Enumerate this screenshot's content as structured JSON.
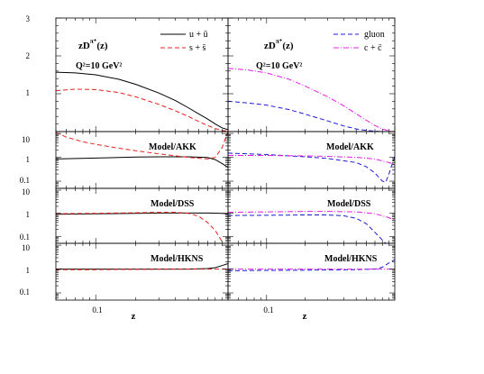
{
  "figure": {
    "left_panel": {
      "ylabel_math": "zD",
      "ylabel_sup": "π⁺",
      "ylabel_arg": "(z)",
      "scale_text": "Q²=10 GeV²",
      "legend": [
        "u + ū",
        "s + s̄"
      ]
    },
    "right_panel": {
      "ylabel_math": "zD",
      "ylabel_sup": "π⁺",
      "ylabel_arg": "(z)",
      "scale_text": "Q²=10 GeV²",
      "legend": [
        "gluon",
        "c + c̄"
      ]
    },
    "ratio_labels": [
      "Model/AKK",
      "Model/DSS",
      "Model/HKNS"
    ],
    "xlabel": "z",
    "x_tick_label": "0.1",
    "top_ytick_labels": [
      "3",
      "2",
      "1"
    ],
    "ratio_ytick_labels": [
      "10",
      "1",
      "0.1"
    ]
  },
  "colors": {
    "u": "#000000",
    "s": "#e8201c",
    "gluon": "#1b1bd6",
    "c": "#e020e0"
  },
  "chart_data": [
    {
      "type": "line",
      "panel": "left-top",
      "title": "zD^{π+}(z)",
      "xlabel": "z",
      "x_scale": "log",
      "xlim": [
        0.05,
        1.0
      ],
      "ylim": [
        0,
        3
      ],
      "series": [
        {
          "name": "u + ū",
          "style": "solid",
          "color": "#000000",
          "x": [
            0.05,
            0.07,
            0.1,
            0.15,
            0.2,
            0.3,
            0.4,
            0.5,
            0.6,
            0.7,
            0.8,
            0.9,
            1.0
          ],
          "y": [
            1.57,
            1.55,
            1.5,
            1.38,
            1.25,
            1.02,
            0.82,
            0.63,
            0.47,
            0.33,
            0.2,
            0.1,
            0.05
          ]
        },
        {
          "name": "s + s̄",
          "style": "dashed",
          "color": "#e8201c",
          "x": [
            0.05,
            0.07,
            0.1,
            0.15,
            0.2,
            0.3,
            0.4,
            0.5,
            0.6,
            0.7,
            0.8,
            0.9,
            1.0
          ],
          "y": [
            1.08,
            1.12,
            1.11,
            1.03,
            0.92,
            0.72,
            0.55,
            0.4,
            0.27,
            0.16,
            0.08,
            0.03,
            0.01
          ]
        }
      ]
    },
    {
      "type": "line",
      "panel": "right-top",
      "title": "zD^{π+}(z)",
      "xlabel": "z",
      "x_scale": "log",
      "xlim": [
        0.05,
        1.0
      ],
      "ylim": [
        0,
        3
      ],
      "series": [
        {
          "name": "gluon",
          "style": "dashed",
          "color": "#1b1bd6",
          "x": [
            0.05,
            0.07,
            0.1,
            0.15,
            0.2,
            0.3,
            0.4,
            0.5,
            0.6,
            0.7,
            0.8,
            0.9,
            1.0
          ],
          "y": [
            0.8,
            0.76,
            0.7,
            0.58,
            0.46,
            0.28,
            0.15,
            0.07,
            0.03,
            0.01,
            0.0,
            0.0,
            0.0
          ]
        },
        {
          "name": "c + c̄",
          "style": "dashdot",
          "color": "#e020e0",
          "x": [
            0.05,
            0.07,
            0.1,
            0.15,
            0.2,
            0.3,
            0.4,
            0.5,
            0.6,
            0.7,
            0.8,
            0.9,
            1.0
          ],
          "y": [
            1.67,
            1.63,
            1.55,
            1.38,
            1.2,
            0.92,
            0.68,
            0.47,
            0.3,
            0.16,
            0.07,
            0.02,
            0.0
          ]
        }
      ]
    },
    {
      "type": "line",
      "panel": "left-akk",
      "annotation": "Model/AKK",
      "x_scale": "log",
      "y_scale": "log",
      "xlim": [
        0.05,
        1.0
      ],
      "ylim": [
        0.05,
        12
      ],
      "series": [
        {
          "name": "u + ū",
          "style": "solid",
          "color": "#000000",
          "x": [
            0.05,
            0.1,
            0.2,
            0.3,
            0.5,
            0.7,
            0.8,
            0.9,
            1.0
          ],
          "y": [
            0.85,
            0.93,
            1.02,
            1.05,
            1.05,
            0.98,
            0.8,
            0.55,
            0.38
          ]
        },
        {
          "name": "s + s̄",
          "style": "dashed",
          "color": "#e8201c",
          "x": [
            0.05,
            0.06,
            0.08,
            0.1,
            0.15,
            0.2,
            0.3,
            0.5,
            0.7,
            0.8,
            0.9,
            1.0
          ],
          "y": [
            11,
            7,
            4.5,
            3.5,
            2.4,
            1.9,
            1.4,
            1.0,
            0.85,
            1.0,
            2.5,
            12
          ]
        }
      ]
    },
    {
      "type": "line",
      "panel": "right-akk",
      "annotation": "Model/AKK",
      "x_scale": "log",
      "y_scale": "log",
      "xlim": [
        0.05,
        1.0
      ],
      "ylim": [
        0.05,
        12
      ],
      "series": [
        {
          "name": "gluon",
          "style": "dashed",
          "color": "#1b1bd6",
          "x": [
            0.05,
            0.1,
            0.2,
            0.3,
            0.5,
            0.6,
            0.7,
            0.8,
            0.85,
            0.9,
            1.0
          ],
          "y": [
            1.5,
            1.3,
            1.05,
            0.9,
            0.6,
            0.4,
            0.22,
            0.1,
            0.09,
            0.2,
            1.1
          ]
        },
        {
          "name": "c + c̄",
          "style": "dashdot",
          "color": "#e020e0",
          "x": [
            0.05,
            0.1,
            0.2,
            0.3,
            0.5,
            0.7,
            0.8,
            0.9,
            1.0
          ],
          "y": [
            1.2,
            1.2,
            1.15,
            1.1,
            1.0,
            0.85,
            0.7,
            0.6,
            0.5
          ]
        }
      ]
    },
    {
      "type": "line",
      "panel": "left-dss",
      "annotation": "Model/DSS",
      "x_scale": "log",
      "y_scale": "log",
      "xlim": [
        0.05,
        1.0
      ],
      "ylim": [
        0.05,
        12
      ],
      "series": [
        {
          "name": "u + ū",
          "style": "solid",
          "color": "#000000",
          "x": [
            0.05,
            0.1,
            0.2,
            0.3,
            0.5,
            0.7,
            0.9,
            1.0
          ],
          "y": [
            0.9,
            0.95,
            1.0,
            1.02,
            1.02,
            1.02,
            1.0,
            0.95
          ]
        },
        {
          "name": "s + s̄",
          "style": "dashed",
          "color": "#e8201c",
          "x": [
            0.05,
            0.1,
            0.2,
            0.3,
            0.4,
            0.5,
            0.6,
            0.7,
            0.8,
            0.9
          ],
          "y": [
            0.95,
            1.0,
            1.05,
            1.1,
            1.1,
            1.0,
            0.75,
            0.4,
            0.18,
            0.06
          ]
        }
      ]
    },
    {
      "type": "line",
      "panel": "right-dss",
      "annotation": "Model/DSS",
      "x_scale": "log",
      "y_scale": "log",
      "xlim": [
        0.05,
        1.0
      ],
      "ylim": [
        0.05,
        12
      ],
      "series": [
        {
          "name": "gluon",
          "style": "dashed",
          "color": "#1b1bd6",
          "x": [
            0.05,
            0.1,
            0.2,
            0.3,
            0.4,
            0.5,
            0.6,
            0.7,
            0.8,
            0.85
          ],
          "y": [
            0.8,
            0.82,
            0.85,
            0.85,
            0.78,
            0.6,
            0.35,
            0.15,
            0.07,
            0.05
          ]
        },
        {
          "name": "c + c̄",
          "style": "dashdot",
          "color": "#e020e0",
          "x": [
            0.05,
            0.1,
            0.2,
            0.3,
            0.5,
            0.7,
            0.9,
            1.0
          ],
          "y": [
            1.1,
            1.15,
            1.2,
            1.2,
            1.15,
            0.95,
            0.65,
            0.5
          ]
        }
      ]
    },
    {
      "type": "line",
      "panel": "left-hkns",
      "annotation": "Model/HKNS",
      "x_scale": "log",
      "y_scale": "log",
      "xlim": [
        0.05,
        1.0
      ],
      "ylim": [
        0.05,
        12
      ],
      "series": [
        {
          "name": "u + ū",
          "style": "solid",
          "color": "#000000",
          "x": [
            0.05,
            0.1,
            0.2,
            0.3,
            0.5,
            0.7,
            0.8,
            0.9,
            1.0
          ],
          "y": [
            1.0,
            1.0,
            1.0,
            1.0,
            1.0,
            1.05,
            1.15,
            1.4,
            1.7
          ]
        },
        {
          "name": "s + s̄",
          "style": "dashed",
          "color": "#e8201c",
          "x": [
            0.05,
            0.1,
            0.2,
            0.3,
            0.5,
            0.7,
            0.9,
            1.0
          ],
          "y": [
            0.95,
            0.95,
            0.97,
            0.98,
            1.0,
            1.0,
            1.0,
            1.0
          ]
        }
      ]
    },
    {
      "type": "line",
      "panel": "right-hkns",
      "annotation": "Model/HKNS",
      "x_scale": "log",
      "y_scale": "log",
      "xlim": [
        0.05,
        1.0
      ],
      "ylim": [
        0.05,
        12
      ],
      "series": [
        {
          "name": "gluon",
          "style": "dashed",
          "color": "#1b1bd6",
          "x": [
            0.05,
            0.1,
            0.2,
            0.3,
            0.5,
            0.7,
            0.8,
            0.9,
            1.0
          ],
          "y": [
            0.85,
            0.88,
            0.9,
            0.92,
            0.95,
            1.0,
            1.2,
            1.8,
            2.5
          ]
        },
        {
          "name": "c + c̄",
          "style": "dashdot",
          "color": "#e020e0",
          "x": [
            0.05,
            0.1,
            0.2,
            0.3,
            0.5,
            0.7,
            0.9,
            1.0
          ],
          "y": [
            1.0,
            1.0,
            1.0,
            1.0,
            1.0,
            1.0,
            1.0,
            1.0
          ]
        }
      ]
    }
  ]
}
